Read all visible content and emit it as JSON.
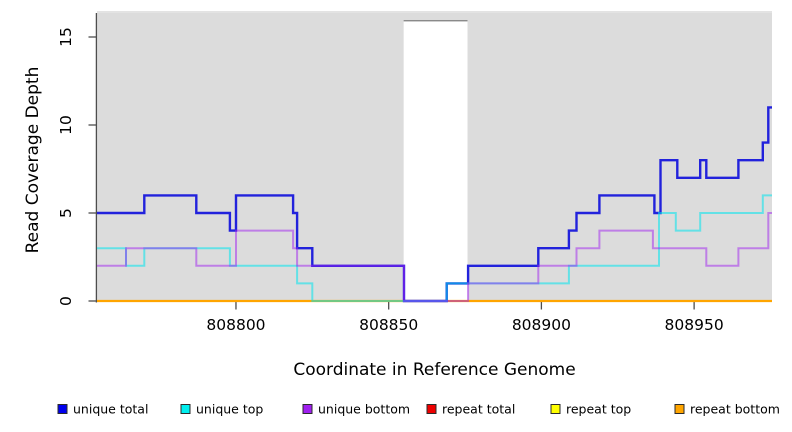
{
  "figure": {
    "background": "#ffffff",
    "plot_background": "#dcdcdc",
    "axis_color": "#4d4d4d"
  },
  "chart_data": {
    "type": "line",
    "step": "hv",
    "title": "",
    "xlabel": "Coordinate in Reference Genome",
    "ylabel": "Read Coverage Depth",
    "xlim": [
      808754.5,
      808975.5
    ],
    "ylim": [
      0,
      16.4
    ],
    "x_ticks": [
      808800,
      808850,
      808900,
      808950
    ],
    "y_ticks": [
      0,
      5,
      10,
      15
    ],
    "grid": false,
    "legend_position": "bottom",
    "gap_region": {
      "x_start": 808854.9,
      "x_end": 808875.8,
      "color": "#ffffff"
    },
    "draw_order": [
      "repeat total",
      "repeat top",
      "repeat bottom",
      "unique total",
      "unique top",
      "unique bottom"
    ],
    "series": [
      {
        "name": "unique total",
        "legend_color": "#0000ee",
        "line_color": "#2222dc",
        "alpha": 1,
        "line_width": 2.4,
        "points": [
          [
            808754.5,
            5
          ],
          [
            808770,
            6
          ],
          [
            808787,
            5
          ],
          [
            808798,
            4
          ],
          [
            808800,
            6
          ],
          [
            808818.7,
            5
          ],
          [
            808820,
            3
          ],
          [
            808825,
            2
          ],
          [
            808855,
            0
          ],
          [
            808869,
            1
          ],
          [
            808876,
            2
          ],
          [
            808899,
            3
          ],
          [
            808909,
            4
          ],
          [
            808911.5,
            5
          ],
          [
            808919,
            6
          ],
          [
            808937,
            5
          ],
          [
            808939,
            8
          ],
          [
            808944.5,
            7
          ],
          [
            808952,
            8
          ],
          [
            808954,
            7
          ],
          [
            808964.5,
            8
          ],
          [
            808972.5,
            9
          ],
          [
            808974.3,
            11
          ]
        ]
      },
      {
        "name": "unique top",
        "legend_color": "#00eeee",
        "line_color": "#00e5ee",
        "alpha": 0.55,
        "line_width": 2,
        "points": [
          [
            808754.5,
            3
          ],
          [
            808764,
            2
          ],
          [
            808770,
            3
          ],
          [
            808798,
            2
          ],
          [
            808820,
            1
          ],
          [
            808825,
            0
          ],
          [
            808869,
            1
          ],
          [
            808909,
            2
          ],
          [
            808938.5,
            5
          ],
          [
            808944,
            4
          ],
          [
            808952,
            5
          ],
          [
            808972.5,
            6
          ]
        ]
      },
      {
        "name": "unique bottom",
        "legend_color": "#a020f0",
        "line_color": "#a020f0",
        "alpha": 0.5,
        "line_width": 2,
        "points": [
          [
            808754.5,
            2
          ],
          [
            808764,
            3
          ],
          [
            808787,
            2
          ],
          [
            808800,
            4
          ],
          [
            808818.7,
            3
          ],
          [
            808820,
            2
          ],
          [
            808855,
            0
          ],
          [
            808876,
            1
          ],
          [
            808899,
            2
          ],
          [
            808911.5,
            3
          ],
          [
            808919,
            4
          ],
          [
            808936.5,
            3
          ],
          [
            808954,
            2
          ],
          [
            808964.5,
            3
          ],
          [
            808974.3,
            5
          ]
        ]
      },
      {
        "name": "repeat total",
        "legend_color": "#ee0000",
        "line_color": "#ee0000",
        "alpha": 1,
        "line_width": 2,
        "points": [
          [
            808754.5,
            0
          ]
        ]
      },
      {
        "name": "repeat top",
        "legend_color": "#ffff00",
        "line_color": "#ffff00",
        "alpha": 1,
        "line_width": 2,
        "points": [
          [
            808754.5,
            0
          ]
        ]
      },
      {
        "name": "repeat bottom",
        "legend_color": "#ffa500",
        "line_color": "#ffa500",
        "alpha": 1,
        "line_width": 2.2,
        "points": [
          [
            808754.5,
            0
          ]
        ]
      }
    ]
  }
}
